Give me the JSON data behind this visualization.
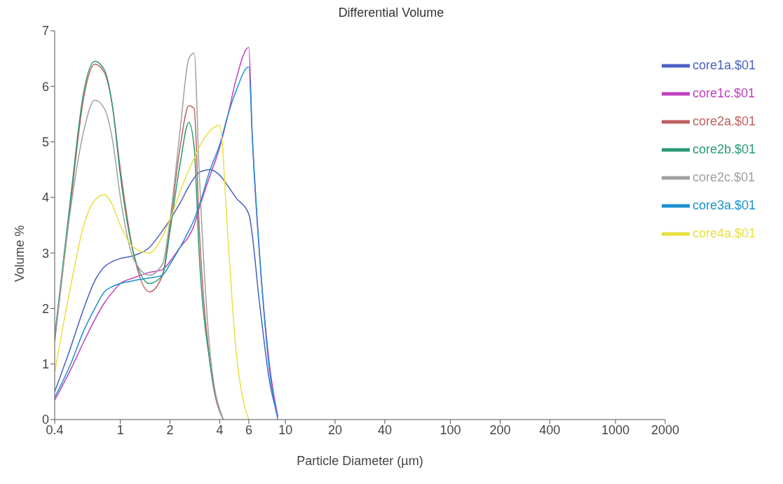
{
  "chart_data": {
    "type": "line",
    "title": "Differential Volume",
    "xlabel": "Particle Diameter (µm)",
    "ylabel": "Volume %",
    "log": "x",
    "xlim": [
      0.4,
      2000
    ],
    "xticks": [
      0.4,
      1,
      2,
      4,
      6,
      10,
      20,
      40,
      100,
      200,
      400,
      1000,
      2000
    ],
    "ylim": [
      0,
      7
    ],
    "yticks": [
      0,
      1,
      2,
      3,
      4,
      5,
      6,
      7
    ],
    "grid": false,
    "legend": "top right",
    "marker": "none",
    "line_style": "solid",
    "series": [
      {
        "name": "core1a.$01",
        "color": "#4a5fc1",
        "x": [
          0.4,
          0.5,
          0.6,
          0.7,
          0.8,
          0.9,
          1,
          1.2,
          1.5,
          1.8,
          2,
          2.3,
          2.6,
          2.8,
          3,
          3.5,
          4,
          4.5,
          5,
          6,
          7,
          8,
          9
        ],
        "values": [
          0.5,
          1.3,
          2.0,
          2.5,
          2.75,
          2.85,
          2.9,
          2.95,
          3.1,
          3.4,
          3.6,
          3.9,
          4.2,
          4.35,
          4.45,
          4.5,
          4.4,
          4.2,
          4.0,
          3.7,
          2.05,
          0.7,
          0.05
        ]
      },
      {
        "name": "core1c.$01",
        "color": "#c040c0",
        "x": [
          0.4,
          0.5,
          0.6,
          0.7,
          0.8,
          0.9,
          1,
          1.2,
          1.5,
          1.8,
          2,
          2.3,
          2.6,
          2.8,
          3,
          3.5,
          4,
          4.5,
          5,
          6,
          6.3,
          7,
          8,
          9
        ],
        "values": [
          0.35,
          0.9,
          1.4,
          1.8,
          2.1,
          2.3,
          2.45,
          2.55,
          2.65,
          2.7,
          2.85,
          3.1,
          3.3,
          3.5,
          3.8,
          4.4,
          4.9,
          5.5,
          6.1,
          6.7,
          5.1,
          2.9,
          1.0,
          0.05
        ]
      },
      {
        "name": "core2a.$01",
        "color": "#c06060",
        "x": [
          0.4,
          0.5,
          0.6,
          0.7,
          0.8,
          0.9,
          1,
          1.2,
          1.5,
          1.8,
          2,
          2.3,
          2.6,
          2.8,
          3,
          3.5,
          4.2
        ],
        "values": [
          1.4,
          3.9,
          5.8,
          6.4,
          6.25,
          5.6,
          4.5,
          3.0,
          2.3,
          2.6,
          3.5,
          4.9,
          5.65,
          5.6,
          3.5,
          1.0,
          0.0
        ]
      },
      {
        "name": "core2b.$01",
        "color": "#2a9a70",
        "x": [
          0.4,
          0.5,
          0.6,
          0.7,
          0.8,
          0.9,
          1,
          1.2,
          1.5,
          1.8,
          2,
          2.3,
          2.6,
          2.8,
          3,
          3.5,
          4.2
        ],
        "values": [
          1.5,
          4.0,
          5.9,
          6.45,
          6.3,
          5.6,
          4.4,
          3.0,
          2.45,
          2.6,
          3.4,
          4.6,
          5.35,
          4.9,
          3.0,
          1.0,
          0.0
        ]
      },
      {
        "name": "core2c.$01",
        "color": "#a0a0a0",
        "x": [
          0.4,
          0.5,
          0.6,
          0.7,
          0.8,
          0.9,
          1,
          1.2,
          1.5,
          1.8,
          2,
          2.3,
          2.6,
          2.8,
          3,
          3.5,
          4.2
        ],
        "values": [
          1.4,
          3.8,
          5.2,
          5.75,
          5.6,
          5.0,
          4.0,
          2.9,
          2.6,
          2.8,
          3.6,
          5.2,
          6.5,
          6.6,
          4.5,
          1.2,
          0.0
        ]
      },
      {
        "name": "core3a.$01",
        "color": "#1a90d0",
        "x": [
          0.4,
          0.5,
          0.6,
          0.7,
          0.8,
          0.9,
          1,
          1.2,
          1.5,
          1.8,
          2,
          2.3,
          2.6,
          2.8,
          3,
          3.5,
          4,
          4.5,
          5,
          6,
          6.3,
          7,
          8,
          9
        ],
        "values": [
          0.4,
          1.0,
          1.6,
          2.0,
          2.3,
          2.4,
          2.45,
          2.5,
          2.55,
          2.6,
          2.8,
          3.1,
          3.4,
          3.6,
          3.85,
          4.5,
          4.95,
          5.5,
          5.9,
          6.35,
          5.1,
          2.9,
          0.9,
          0.0
        ]
      },
      {
        "name": "core4a.$01",
        "color": "#e8e040",
        "x": [
          0.4,
          0.5,
          0.6,
          0.7,
          0.8,
          0.9,
          1,
          1.2,
          1.5,
          1.8,
          2,
          2.3,
          2.6,
          2.8,
          3,
          3.5,
          4,
          4.5,
          5,
          5.5,
          6
        ],
        "values": [
          0.85,
          2.4,
          3.5,
          3.95,
          4.05,
          3.85,
          3.5,
          3.1,
          3.0,
          3.3,
          3.6,
          4.1,
          4.5,
          4.7,
          4.9,
          5.2,
          5.3,
          3.2,
          1.3,
          0.4,
          0.0
        ]
      }
    ]
  }
}
